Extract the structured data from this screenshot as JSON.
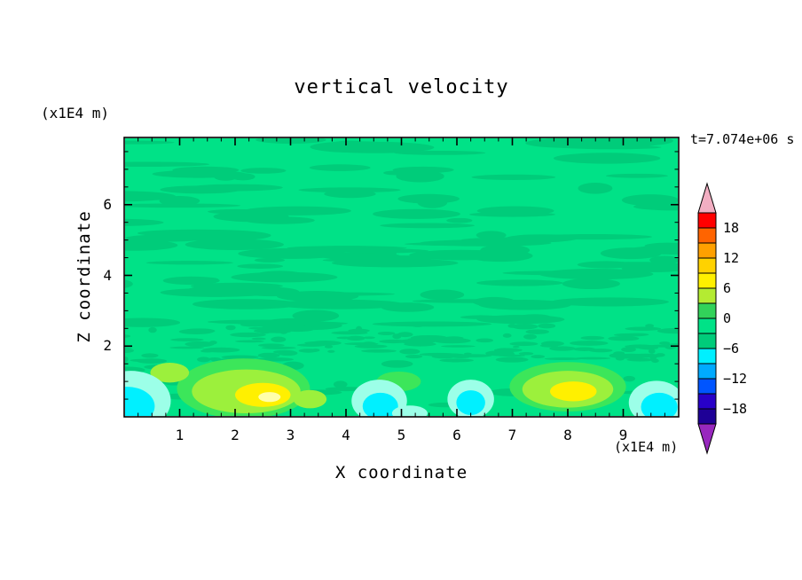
{
  "chart_data": {
    "type": "heatmap",
    "subtype": "filled-contour",
    "title": "vertical velocity",
    "timestamp_label": "t=7.074e+06 s",
    "x_axis": {
      "label": "X coordinate",
      "units_label": "(x1E4 m)",
      "range": [
        0,
        10
      ],
      "tick_values": [
        1,
        2,
        3,
        4,
        5,
        6,
        7,
        8,
        9
      ],
      "tick_labels": [
        "1",
        "2",
        "3",
        "4",
        "5",
        "6",
        "7",
        "8",
        "9"
      ],
      "minor_tick_step": 0.25
    },
    "z_axis": {
      "label": "Z coordinate",
      "units_label": "(x1E4 m)",
      "range": [
        0,
        7.9
      ],
      "tick_values": [
        2,
        4,
        6
      ],
      "tick_labels": [
        "2",
        "4",
        "6"
      ],
      "minor_tick_step": 0.5
    },
    "colorbar": {
      "tick_labels": [
        "18",
        "12",
        "6",
        "0",
        "−6",
        "−12",
        "−18"
      ],
      "tick_values": [
        18,
        12,
        6,
        0,
        -6,
        -12,
        -18
      ],
      "level_min": -21,
      "level_max": 21,
      "level_step": 3,
      "segment_colors_top_to_bottom": [
        "#FF0000",
        "#FF6400",
        "#FFA000",
        "#FFD200",
        "#FFF000",
        "#B4EB32",
        "#32D25A",
        "#00E287",
        "#00CC7A",
        "#00F0FF",
        "#00AAFF",
        "#0055FF",
        "#2800C8",
        "#1E0096"
      ],
      "over_arrow_color": "#F2AEC2",
      "under_arrow_color": "#9828BE"
    },
    "field": {
      "summary": "Mostly near-zero (within ±3) green field crossed by thin horizontal bands; a speckled band near z≈2; boundary-layer plumes near the bottom: updrafts (≈6 to 15) around x≈2.5 and x≈8, weaker ones near x≈3.3 and x≈0.8; downdrafts (≈−3 to −9) near x≈0.1, 4.6, 5.2, 6.3 and 9.6.",
      "palette": {
        "base": "#00E287",
        "streak": "#00CC7A",
        "green2": "#3CE65A",
        "ygreen": "#9CF03C",
        "yellow": "#FFF000",
        "paleyellow": "#FFFFAA",
        "cyan": "#00F0FF",
        "palecyan": "#9CFFE8"
      },
      "streak_seed": 1337,
      "streak_bands": [
        {
          "n": 115,
          "zmin": 2.5,
          "zmax": 7.85,
          "rxmin": 0.18,
          "rxmax": 1.2,
          "rzmin": 0.05,
          "rzmax": 0.17
        },
        {
          "n": 140,
          "zmin": 1.55,
          "zmax": 2.65,
          "rxmin": 0.05,
          "rxmax": 0.35,
          "rzmin": 0.03,
          "rzmax": 0.08
        },
        {
          "n": 28,
          "zmin": 0.15,
          "zmax": 1.5,
          "rxmin": 0.1,
          "rxmax": 0.55,
          "rzmin": 0.04,
          "rzmax": 0.12
        }
      ],
      "features": [
        {
          "x": 2.15,
          "z": 0.8,
          "rx": 1.2,
          "rz": 0.85,
          "color": "green2"
        },
        {
          "x": 2.2,
          "z": 0.72,
          "rx": 0.98,
          "rz": 0.62,
          "color": "ygreen"
        },
        {
          "x": 2.5,
          "z": 0.62,
          "rx": 0.5,
          "rz": 0.34,
          "color": "yellow"
        },
        {
          "x": 2.62,
          "z": 0.56,
          "rx": 0.2,
          "rz": 0.14,
          "color": "paleyellow"
        },
        {
          "x": 3.35,
          "z": 0.5,
          "rx": 0.3,
          "rz": 0.26,
          "color": "ygreen"
        },
        {
          "x": 0.82,
          "z": 1.25,
          "rx": 0.35,
          "rz": 0.28,
          "color": "ygreen"
        },
        {
          "x": 4.95,
          "z": 1.0,
          "rx": 0.4,
          "rz": 0.28,
          "color": "green2"
        },
        {
          "x": 8.0,
          "z": 0.85,
          "rx": 1.05,
          "rz": 0.7,
          "color": "green2"
        },
        {
          "x": 8.0,
          "z": 0.78,
          "rx": 0.82,
          "rz": 0.52,
          "color": "ygreen"
        },
        {
          "x": 8.1,
          "z": 0.72,
          "rx": 0.42,
          "rz": 0.28,
          "color": "yellow"
        },
        {
          "x": 0.12,
          "z": 0.45,
          "rx": 0.72,
          "rz": 0.85,
          "color": "palecyan"
        },
        {
          "x": 0.05,
          "z": 0.3,
          "rx": 0.5,
          "rz": 0.55,
          "color": "cyan"
        },
        {
          "x": 4.6,
          "z": 0.45,
          "rx": 0.5,
          "rz": 0.6,
          "color": "palecyan"
        },
        {
          "x": 4.62,
          "z": 0.3,
          "rx": 0.32,
          "rz": 0.38,
          "color": "cyan"
        },
        {
          "x": 5.15,
          "z": 0.1,
          "rx": 0.32,
          "rz": 0.22,
          "color": "palecyan"
        },
        {
          "x": 6.25,
          "z": 0.5,
          "rx": 0.42,
          "rz": 0.55,
          "color": "palecyan"
        },
        {
          "x": 6.25,
          "z": 0.4,
          "rx": 0.26,
          "rz": 0.35,
          "color": "cyan"
        },
        {
          "x": 9.6,
          "z": 0.4,
          "rx": 0.5,
          "rz": 0.62,
          "color": "palecyan"
        },
        {
          "x": 9.65,
          "z": 0.28,
          "rx": 0.33,
          "rz": 0.4,
          "color": "cyan"
        }
      ]
    }
  }
}
